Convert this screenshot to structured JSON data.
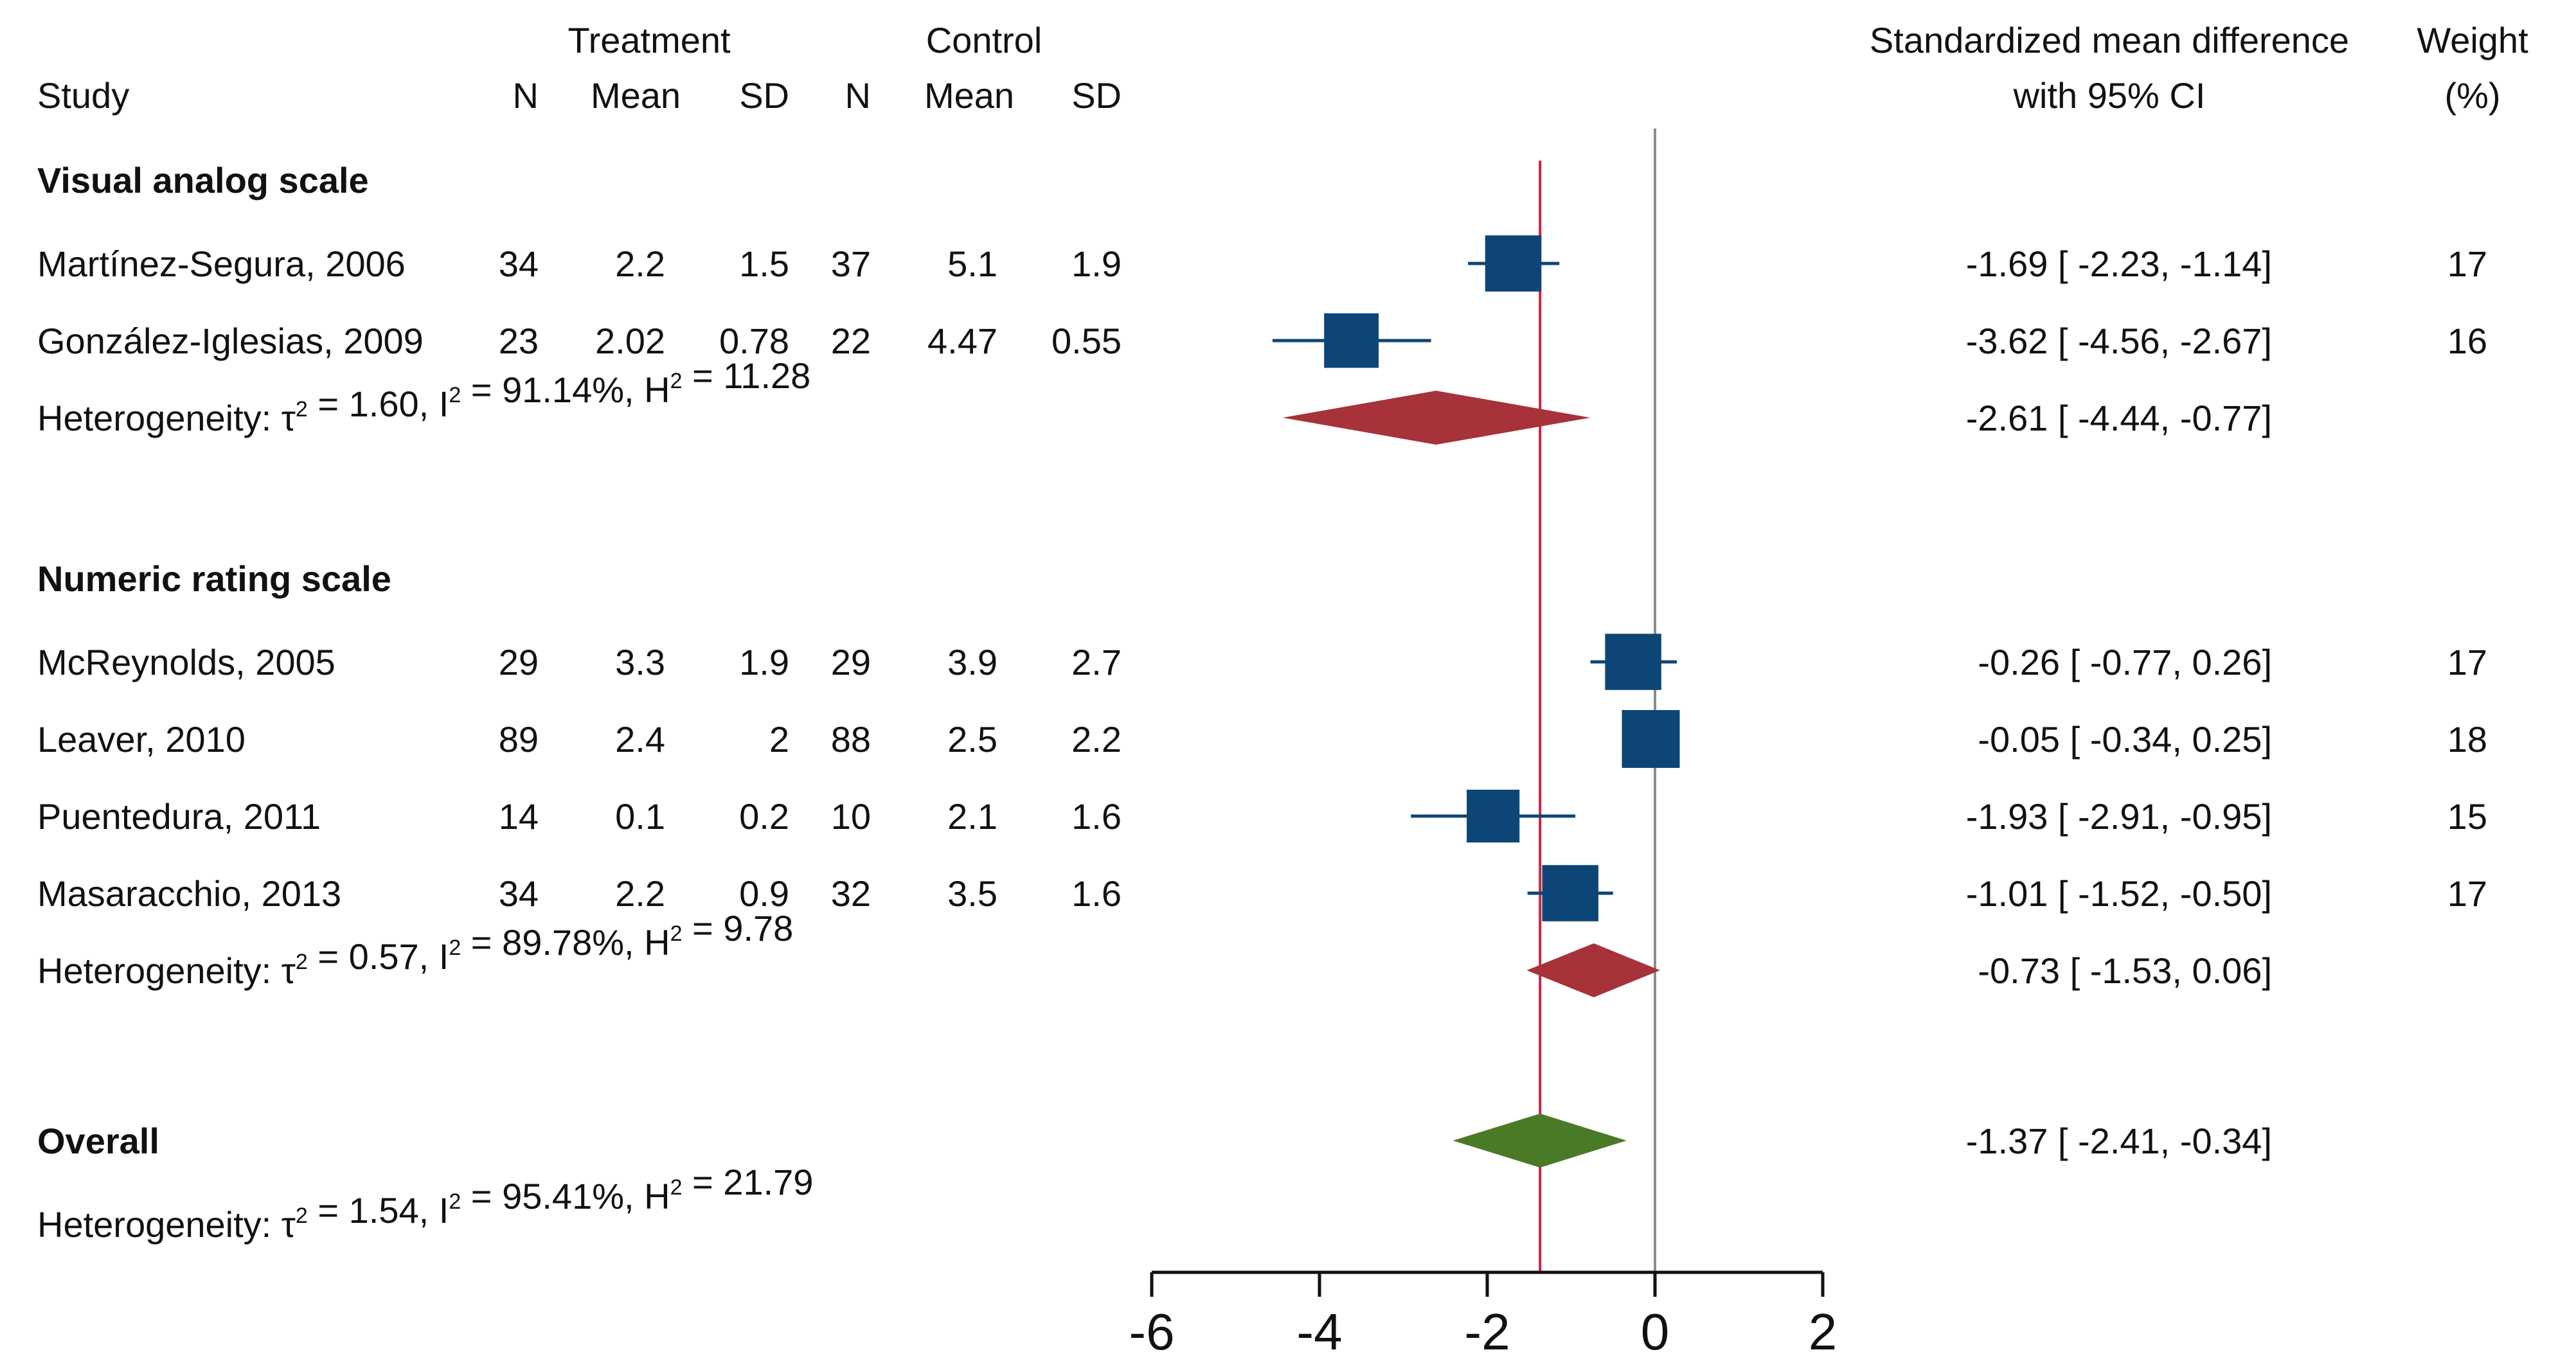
{
  "chart_data": {
    "type": "forest",
    "title": "",
    "x_axis": {
      "range": [
        -6,
        2
      ],
      "ticks": [
        "-6",
        "-4",
        "-2",
        "0",
        "2"
      ],
      "label": ""
    },
    "null_line": 0,
    "overall_line": -1.37,
    "headers": {
      "group_treatment": "Treatment",
      "group_control": "Control",
      "study": "Study",
      "n": "N",
      "mean": "Mean",
      "sd": "SD",
      "effect_line1": "Standardized mean difference",
      "effect_line2": "with 95% CI",
      "weight_line1": "Weight",
      "weight_line2": "(%)"
    },
    "rows": [
      {
        "kind": "group",
        "label": "Visual analog scale"
      },
      {
        "kind": "study",
        "study": "Martínez-Segura, 2006",
        "tn": "34",
        "tmean": "2.2",
        "tsd": "1.5",
        "cn": "37",
        "cmean": "5.1",
        "csd": "1.9",
        "est": -1.69,
        "lo": -2.23,
        "hi": -1.14,
        "ci_text": "-1.69 [ -2.23,  -1.14]",
        "weight": 17,
        "weight_text": "17"
      },
      {
        "kind": "study",
        "study": "González-Iglesias, 2009",
        "tn": "23",
        "tmean": "2.02",
        "tsd": "0.78",
        "cn": "22",
        "cmean": "4.47",
        "csd": "0.55",
        "est": -3.62,
        "lo": -4.56,
        "hi": -2.67,
        "ci_text": "-3.62 [ -4.56,  -2.67]",
        "weight": 16,
        "weight_text": "16"
      },
      {
        "kind": "subtotal",
        "label": "Heterogeneity: τ",
        "tau2": "2",
        "mid1": " = 1.60, I",
        "i2": "2",
        "mid2": " = 91.14%, H",
        "h2": "2",
        "end": " = 11.28",
        "est": -2.61,
        "lo": -4.44,
        "hi": -0.77,
        "ci_text": "-2.61 [ -4.44,  -0.77]",
        "color": "#a8323a"
      },
      {
        "kind": "spacer"
      },
      {
        "kind": "group",
        "label": "Numeric rating scale"
      },
      {
        "kind": "study",
        "study": "McReynolds, 2005",
        "tn": "29",
        "tmean": "3.3",
        "tsd": "1.9",
        "cn": "29",
        "cmean": "3.9",
        "csd": "2.7",
        "est": -0.26,
        "lo": -0.77,
        "hi": 0.26,
        "ci_text": "-0.26 [ -0.77,   0.26]",
        "weight": 17,
        "weight_text": "17"
      },
      {
        "kind": "study",
        "study": "Leaver, 2010",
        "tn": "89",
        "tmean": "2.4",
        "tsd": "2",
        "cn": "88",
        "cmean": "2.5",
        "csd": "2.2",
        "est": -0.05,
        "lo": -0.34,
        "hi": 0.25,
        "ci_text": "-0.05 [ -0.34,   0.25]",
        "weight": 18,
        "weight_text": "18"
      },
      {
        "kind": "study",
        "study": "Puentedura, 2011",
        "tn": "14",
        "tmean": "0.1",
        "tsd": "0.2",
        "cn": "10",
        "cmean": "2.1",
        "csd": "1.6",
        "est": -1.93,
        "lo": -2.91,
        "hi": -0.95,
        "ci_text": "-1.93 [ -2.91,  -0.95]",
        "weight": 15,
        "weight_text": "15"
      },
      {
        "kind": "study",
        "study": "Masaracchio, 2013",
        "tn": "34",
        "tmean": "2.2",
        "tsd": "0.9",
        "cn": "32",
        "cmean": "3.5",
        "csd": "1.6",
        "est": -1.01,
        "lo": -1.52,
        "hi": -0.5,
        "ci_text": "-1.01 [ -1.52,  -0.50]",
        "weight": 17,
        "weight_text": "17"
      },
      {
        "kind": "subtotal",
        "label": "Heterogeneity: τ",
        "tau2": "2",
        "mid1": " = 0.57, I",
        "i2": "2",
        "mid2": " = 89.78%, H",
        "h2": "2",
        "end": " = 9.78",
        "est": -0.73,
        "lo": -1.53,
        "hi": 0.06,
        "ci_text": "-0.73 [ -1.53,   0.06]",
        "color": "#a8323a"
      },
      {
        "kind": "spacer"
      },
      {
        "kind": "overall",
        "label": "Overall",
        "est": -1.37,
        "lo": -2.41,
        "hi": -0.34,
        "ci_text": "-1.37 [ -2.41,  -0.34]",
        "color": "#4a7a26"
      },
      {
        "kind": "het",
        "label": "Heterogeneity: τ",
        "tau2": "2",
        "mid1": " = 1.54, I",
        "i2": "2",
        "mid2": " = 95.41%, H",
        "h2": "2",
        "end": " = 21.79"
      }
    ],
    "colors": {
      "study_marker": "#0d4676",
      "subtotal": "#a8323a",
      "overall": "#4a7a26",
      "overall_line": "#cc2244",
      "null_line": "#8c8c8c",
      "axis": "#111111"
    }
  }
}
